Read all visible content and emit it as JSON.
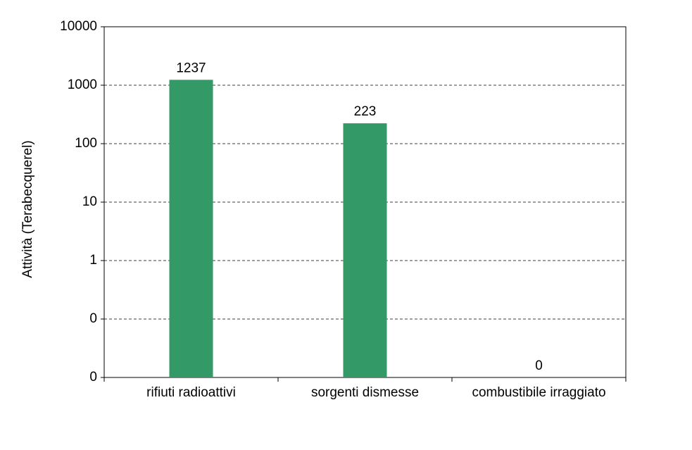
{
  "chart_data": {
    "type": "bar",
    "y_label": "Attività (Terabecquerel)",
    "categories": [
      "rifiuti radioattivi",
      "sorgenti dismesse",
      "combustibile irraggiato"
    ],
    "values": [
      1237,
      223,
      0
    ],
    "color": "#339966",
    "log_scale": true,
    "grid": true,
    "ylim": [
      0.01,
      10000
    ],
    "yticks": [
      {
        "value": 0.01,
        "label": "0"
      },
      {
        "value": 0.1,
        "label": "0"
      },
      1,
      10,
      100,
      1000,
      10000
    ]
  }
}
